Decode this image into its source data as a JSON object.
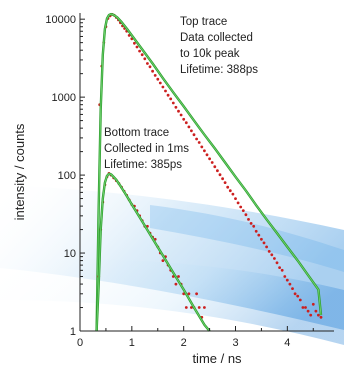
{
  "chart_data": {
    "type": "scatter",
    "xlabel": "time / ns",
    "ylabel": "intensity / counts",
    "xlim": [
      0,
      4.9
    ],
    "ylim": [
      1,
      12000
    ],
    "y_scale": "log",
    "grid": false,
    "x_ticks": [
      0,
      1,
      2,
      3,
      4
    ],
    "y_ticks": [
      1,
      10,
      100,
      1000,
      10000
    ],
    "colors": {
      "data": "#cc1f1f",
      "fit": "#2f9e2f",
      "fit_highlight": "#7ee07e",
      "background_swoosh": "#8ec3ec"
    },
    "series": [
      {
        "kind": "data",
        "x": [
          0.38,
          0.42,
          0.46,
          0.5,
          0.54,
          0.58,
          0.62,
          0.66,
          0.7,
          0.74,
          0.78,
          0.82,
          0.86,
          0.9,
          0.95,
          1.0,
          1.05,
          1.1,
          1.15,
          1.2,
          1.25,
          1.3,
          1.35,
          1.4,
          1.45,
          1.5,
          1.55,
          1.6,
          1.65,
          1.7,
          1.75,
          1.8,
          1.85,
          1.9,
          1.95,
          2.0,
          2.05,
          2.1,
          2.15,
          2.2,
          2.25,
          2.3,
          2.35,
          2.4,
          2.45,
          2.5,
          2.55,
          2.6,
          2.65,
          2.7,
          2.75,
          2.8,
          2.85,
          2.9,
          2.95,
          3.0,
          3.05,
          3.1,
          3.15,
          3.2,
          3.25,
          3.3,
          3.35,
          3.4,
          3.45,
          3.5,
          3.55,
          3.6,
          3.65,
          3.7,
          3.75,
          3.8,
          3.85,
          3.9,
          3.95,
          4.0,
          4.05,
          4.1,
          4.15,
          4.2,
          4.25,
          4.3,
          4.35,
          4.4,
          4.45,
          4.5,
          4.55,
          4.6,
          4.65
        ],
        "y": [
          800,
          2500,
          5000,
          8000,
          10200,
          11000,
          11500,
          11200,
          10500,
          9800,
          9000,
          8200,
          7600,
          7000,
          6200,
          5600,
          4900,
          4400,
          3900,
          3500,
          3100,
          2700,
          2450,
          2150,
          1900,
          1700,
          1520,
          1350,
          1200,
          1060,
          950,
          840,
          740,
          660,
          590,
          520,
          470,
          415,
          370,
          330,
          290,
          262,
          230,
          205,
          182,
          162,
          145,
          128,
          114,
          101,
          90,
          80,
          70,
          63,
          57,
          50,
          44,
          39,
          35,
          31,
          27,
          24,
          22,
          19,
          17,
          15,
          13.5,
          12,
          10.5,
          9.5,
          8.5,
          7.5,
          6.5,
          6,
          5,
          4.5,
          4,
          3.5,
          3,
          2.8,
          2.5,
          2,
          2,
          1.8,
          1.6,
          2.2,
          1.8,
          1.6,
          1.5
        ]
      },
      {
        "kind": "fit",
        "lifetime_ps": 388,
        "x": [
          0.32,
          0.36,
          0.4,
          0.44,
          0.48,
          0.52,
          0.56,
          0.6,
          0.64,
          0.68,
          0.72,
          0.8,
          0.9,
          1.0,
          1.2,
          1.4,
          1.6,
          1.8,
          2.0,
          2.2,
          2.4,
          2.6,
          2.8,
          3.0,
          3.2,
          3.4,
          3.6,
          3.8,
          4.0,
          4.2,
          4.4,
          4.6,
          4.65
        ],
        "y": [
          1,
          40,
          700,
          3500,
          7500,
          10200,
          11300,
          11600,
          11400,
          11000,
          10500,
          9200,
          7600,
          6200,
          4100,
          2700,
          1750,
          1150,
          760,
          500,
          330,
          220,
          145,
          95,
          63,
          41,
          27,
          18,
          12,
          8,
          5.2,
          3.4,
          1.6
        ]
      },
      {
        "kind": "data",
        "x": [
          0.36,
          0.4,
          0.44,
          0.48,
          0.52,
          0.56,
          0.6,
          0.65,
          0.7,
          0.75,
          0.8,
          0.85,
          0.9,
          0.95,
          1.0,
          1.05,
          1.1,
          1.15,
          1.2,
          1.25,
          1.3,
          1.35,
          1.4,
          1.45,
          1.5,
          1.55,
          1.6,
          1.65,
          1.7,
          1.75,
          1.8,
          1.85,
          1.9,
          1.95,
          2.0,
          2.05,
          2.1,
          2.15,
          2.2,
          2.25,
          2.3,
          2.35,
          2.4
        ],
        "y": [
          5,
          20,
          45,
          75,
          95,
          105,
          100,
          92,
          85,
          78,
          70,
          62,
          55,
          48,
          42,
          40,
          35,
          30,
          26,
          22,
          22,
          18,
          16,
          15,
          12,
          10,
          8,
          9,
          7,
          6,
          5,
          4,
          5,
          4,
          3,
          2,
          3,
          2,
          2,
          3,
          2,
          1.5,
          2
        ]
      },
      {
        "kind": "fit",
        "lifetime_ps": 385,
        "x": [
          0.32,
          0.36,
          0.4,
          0.44,
          0.48,
          0.52,
          0.56,
          0.6,
          0.64,
          0.7,
          0.8,
          0.9,
          1.0,
          1.2,
          1.4,
          1.6,
          1.8,
          2.0,
          2.2,
          2.4,
          2.5
        ],
        "y": [
          1,
          4,
          20,
          50,
          80,
          98,
          104,
          102,
          96,
          87,
          69,
          54,
          42,
          25.5,
          15.3,
          9.3,
          5.6,
          3.4,
          2.0,
          1.2,
          1.0
        ]
      }
    ],
    "annotations": [
      {
        "target": "top",
        "lines": [
          "Top trace",
          "Data collected",
          "to 10k peak",
          "Lifetime: 388ps"
        ]
      },
      {
        "target": "bottom",
        "lines": [
          "Bottom trace",
          "Collected in 1ms",
          "Lifetime: 385ps"
        ]
      }
    ]
  }
}
